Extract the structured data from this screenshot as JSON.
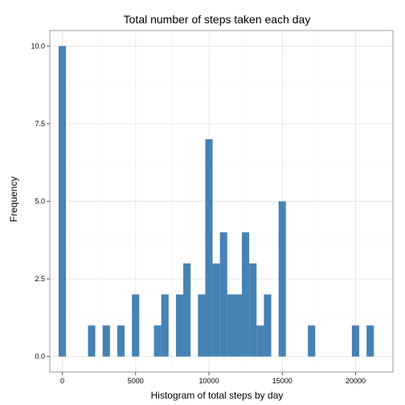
{
  "chart_data": {
    "type": "bar",
    "title": "Total number of steps taken each day",
    "xlabel": "Histogram of total steps by day",
    "ylabel": "Frequency",
    "bin_width": 500,
    "xlim": [
      -850,
      22550
    ],
    "ylim": [
      -0.5,
      10.5
    ],
    "x_ticks": [
      0,
      5000,
      10000,
      15000,
      20000
    ],
    "x_tick_labels": [
      "0",
      "5000",
      "10000",
      "15000",
      "20000"
    ],
    "y_ticks": [
      0,
      2.5,
      5,
      7.5,
      10
    ],
    "y_tick_labels": [
      "0.0",
      "2.5",
      "5.0",
      "7.5",
      "10.0"
    ],
    "color": "#4682b4",
    "grid": true,
    "bins": [
      {
        "x": 0,
        "count": 10
      },
      {
        "x": 2000,
        "count": 1
      },
      {
        "x": 3000,
        "count": 1
      },
      {
        "x": 4000,
        "count": 1
      },
      {
        "x": 5000,
        "count": 2
      },
      {
        "x": 6500,
        "count": 1
      },
      {
        "x": 7000,
        "count": 2
      },
      {
        "x": 8000,
        "count": 2
      },
      {
        "x": 8500,
        "count": 3
      },
      {
        "x": 9500,
        "count": 2
      },
      {
        "x": 10000,
        "count": 7
      },
      {
        "x": 10500,
        "count": 3
      },
      {
        "x": 11000,
        "count": 4
      },
      {
        "x": 11500,
        "count": 2
      },
      {
        "x": 12000,
        "count": 2
      },
      {
        "x": 12500,
        "count": 4
      },
      {
        "x": 13000,
        "count": 3
      },
      {
        "x": 13500,
        "count": 1
      },
      {
        "x": 14000,
        "count": 2
      },
      {
        "x": 15000,
        "count": 5
      },
      {
        "x": 17000,
        "count": 1
      },
      {
        "x": 20000,
        "count": 1
      },
      {
        "x": 21000,
        "count": 1
      }
    ]
  }
}
